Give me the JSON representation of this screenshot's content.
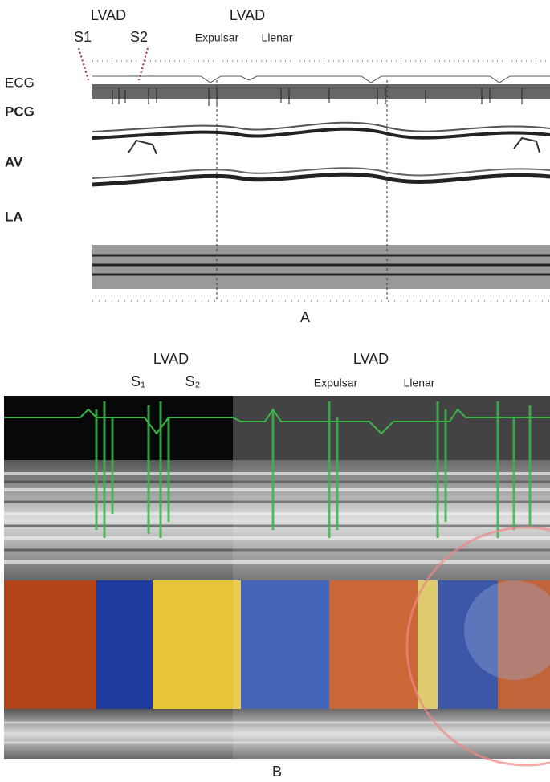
{
  "panel_a": {
    "lvad_left": "LVAD",
    "lvad_right": "LVAD",
    "s1": "S1",
    "s2": "S2",
    "expulsar": "Expulsar",
    "llenar": "Llenar",
    "traces": [
      "ECG",
      "PCG",
      "AV",
      "LA"
    ],
    "caption": "A"
  },
  "panel_b": {
    "lvad_left": "LVAD",
    "lvad_right": "LVAD",
    "s1": "S₁",
    "s2": "S₂",
    "expulsar": "Expulsar",
    "llenar": "Llenar",
    "caption": "B"
  }
}
